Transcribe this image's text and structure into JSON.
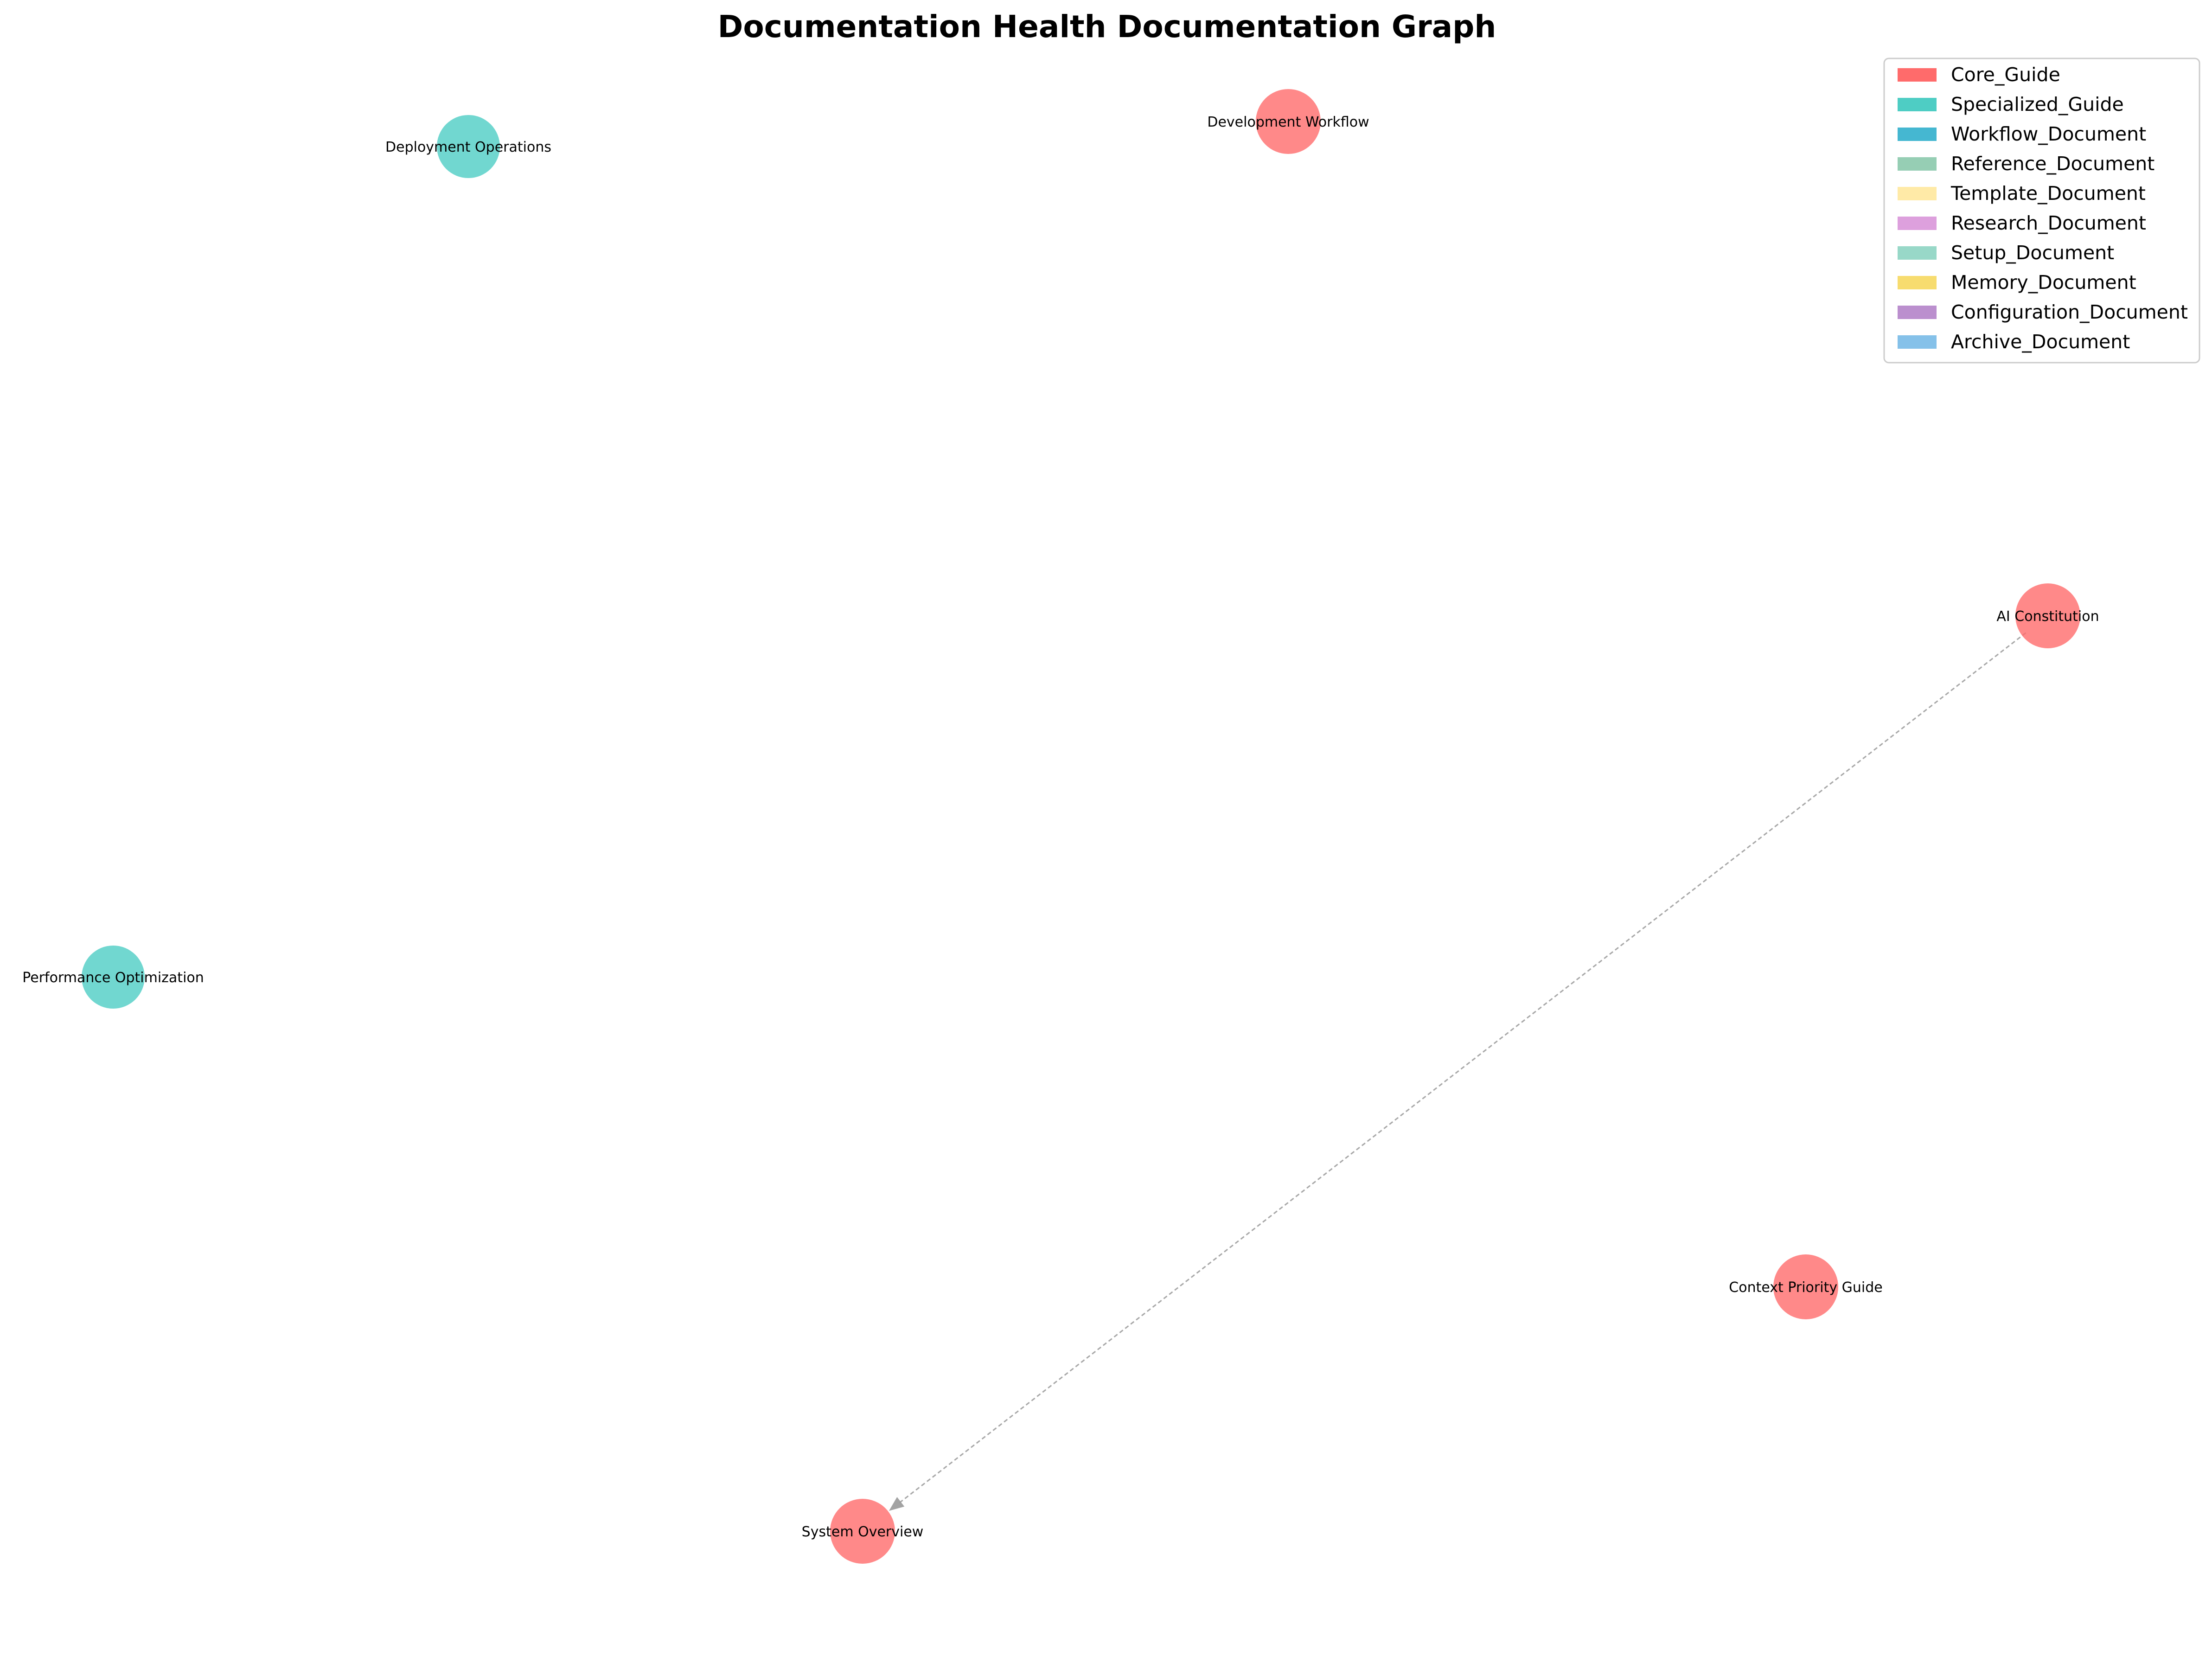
{
  "title": "Documentation Health Documentation Graph",
  "legend": {
    "placement": "top-right",
    "entries": [
      {
        "label": "Core_Guide",
        "color": "#ff6b6b"
      },
      {
        "label": "Specialized_Guide",
        "color": "#4ecdc4"
      },
      {
        "label": "Workflow_Document",
        "color": "#45b7d1"
      },
      {
        "label": "Reference_Document",
        "color": "#96ceb4"
      },
      {
        "label": "Template_Document",
        "color": "#ffeaa7"
      },
      {
        "label": "Research_Document",
        "color": "#dda0dd"
      },
      {
        "label": "Setup_Document",
        "color": "#98d8c8"
      },
      {
        "label": "Memory_Document",
        "color": "#f7dc6f"
      },
      {
        "label": "Configuration_Document",
        "color": "#bb8fce"
      },
      {
        "label": "Archive_Document",
        "color": "#85c1e9"
      }
    ]
  },
  "nodes": [
    {
      "id": "deployment-operations",
      "label": "Deployment Operations",
      "category": "Specialized_Guide"
    },
    {
      "id": "development-workflow",
      "label": "Development Workflow",
      "category": "Core_Guide"
    },
    {
      "id": "ai-constitution",
      "label": "AI Constitution",
      "category": "Core_Guide"
    },
    {
      "id": "performance-optimization",
      "label": "Performance Optimization",
      "category": "Specialized_Guide"
    },
    {
      "id": "context-priority-guide",
      "label": "Context Priority Guide",
      "category": "Core_Guide"
    },
    {
      "id": "system-overview",
      "label": "System Overview",
      "category": "Core_Guide"
    }
  ],
  "edges": [
    {
      "source": "ai-constitution",
      "target": "system-overview",
      "directed": true,
      "style": "dashed",
      "color": "#999999"
    }
  ],
  "styles": {
    "node_opacity": 0.8,
    "edge_color": "#999999",
    "legend_border": "#cccccc"
  }
}
